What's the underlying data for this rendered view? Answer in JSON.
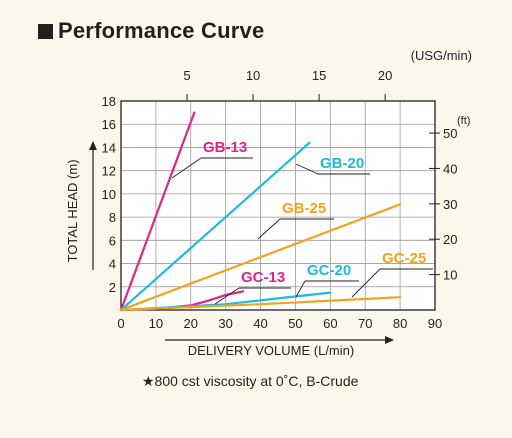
{
  "title": "Performance Curve",
  "footnote": "★800 cst viscosity at 0˚C, B-Crude",
  "chart_data": {
    "type": "line",
    "title": "Performance Curve",
    "xlabel": "DELIVERY VOLUME (L/min)",
    "ylabel": "TOTAL HEAD (m)",
    "top_axis_label": "(USG/min)",
    "right_axis_label": "(ft)",
    "xlim": [
      0,
      90
    ],
    "ylim": [
      0,
      18
    ],
    "x_ticks": [
      0,
      10,
      20,
      30,
      40,
      50,
      60,
      70,
      80,
      90
    ],
    "y_ticks": [
      2,
      4,
      6,
      8,
      10,
      12,
      14,
      16,
      18
    ],
    "top_ticks": [
      5,
      10,
      15,
      20
    ],
    "right_ticks": [
      10,
      20,
      30,
      40,
      50
    ],
    "grid": true,
    "series": [
      {
        "name": "GB-13",
        "color": "#e0248c",
        "x": [
          0,
          21
        ],
        "y": [
          0,
          17
        ]
      },
      {
        "name": "GB-20",
        "color": "#1fb8e0",
        "x": [
          0,
          54
        ],
        "y": [
          0,
          14.4
        ]
      },
      {
        "name": "GB-25",
        "color": "#f2a31b",
        "x": [
          0,
          80
        ],
        "y": [
          0,
          9.1
        ]
      },
      {
        "name": "GC-13",
        "color": "#e0248c",
        "x": [
          0,
          10,
          20,
          25,
          30,
          35
        ],
        "y": [
          0,
          0.1,
          0.4,
          0.8,
          1.3,
          1.6
        ]
      },
      {
        "name": "GC-20",
        "color": "#1fb8e0",
        "x": [
          0,
          30,
          45,
          60
        ],
        "y": [
          0,
          0.5,
          1.0,
          1.5
        ]
      },
      {
        "name": "GC-25",
        "color": "#f2a31b",
        "x": [
          0,
          40,
          80
        ],
        "y": [
          0,
          0.5,
          1.1
        ]
      }
    ]
  }
}
